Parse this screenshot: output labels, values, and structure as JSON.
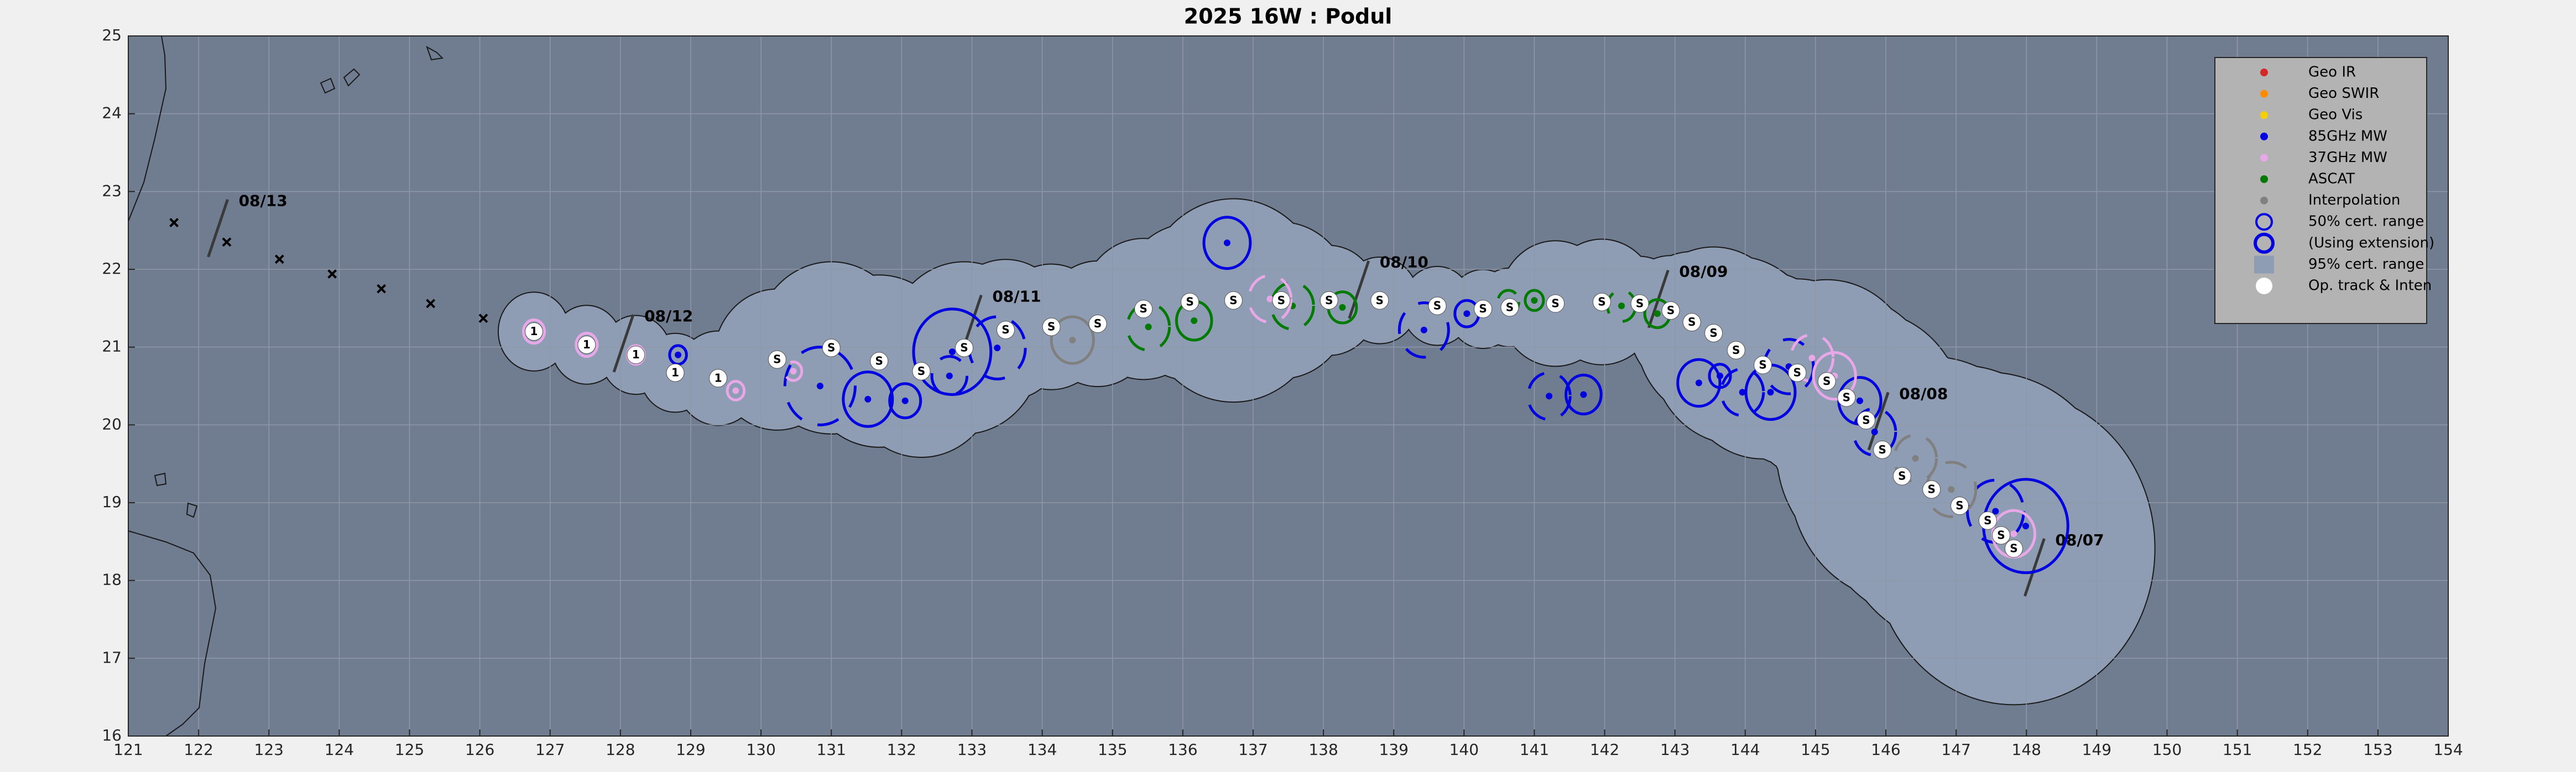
{
  "chart_data": {
    "type": "track",
    "title": "2025  16W :  Podul",
    "xlim": [
      121,
      154
    ],
    "ylim": [
      16,
      25
    ],
    "xticks": [
      121,
      122,
      123,
      124,
      125,
      126,
      127,
      128,
      129,
      130,
      131,
      132,
      133,
      134,
      135,
      136,
      137,
      138,
      139,
      140,
      141,
      142,
      143,
      144,
      145,
      146,
      147,
      148,
      149,
      150,
      151,
      152,
      153,
      154
    ],
    "yticks": [
      16,
      17,
      18,
      19,
      20,
      21,
      22,
      23,
      24,
      25
    ],
    "grid": true,
    "legend": "upper right",
    "legend_entries": [
      {
        "name": "Geo IR",
        "color": "#d62728",
        "marker": "dot"
      },
      {
        "name": "Geo SWIR",
        "color": "#ff8c00",
        "marker": "dot"
      },
      {
        "name": "Geo Vis",
        "color": "#f5d000",
        "marker": "dot"
      },
      {
        "name": "85GHz MW",
        "color": "#0000e0",
        "marker": "dot"
      },
      {
        "name": "37GHz MW",
        "color": "#e8a8e8",
        "marker": "dot"
      },
      {
        "name": "ASCAT",
        "color": "#007a00",
        "marker": "dot"
      },
      {
        "name": "Interpolation",
        "color": "#808080",
        "marker": "dot"
      },
      {
        "name": "50% cert. range",
        "color": "#0000e0",
        "marker": "ring"
      },
      {
        "name": "(Using extension)",
        "color": "#0000e0",
        "marker": "ring-thick"
      },
      {
        "name": "95% cert. range",
        "color": "#8f9db4",
        "marker": "patch"
      },
      {
        "name": "Op. track & Inten",
        "color": "#ffffff",
        "marker": "white-dot"
      }
    ],
    "past_positions": {
      "x": [
        121.65,
        122.4,
        123.15,
        123.9,
        124.6,
        125.3,
        126.05
      ],
      "y": [
        22.6,
        22.35,
        22.13,
        21.94,
        21.75,
        21.56,
        21.37
      ]
    },
    "track": {
      "x": [
        126.77,
        127.52,
        128.22,
        128.78,
        129.39,
        130.23,
        131.0,
        131.68,
        132.28,
        132.89,
        133.48,
        134.13,
        134.79,
        135.44,
        136.1,
        136.72,
        137.4,
        138.08,
        138.8,
        139.62,
        140.27,
        140.65,
        141.3,
        141.96,
        142.5,
        142.94,
        143.24,
        143.55,
        143.87,
        144.25,
        144.74,
        145.16,
        145.44,
        145.72,
        145.95,
        146.23,
        146.65,
        147.05,
        147.45,
        147.64,
        147.82
      ],
      "y": [
        21.2,
        21.03,
        20.9,
        20.67,
        20.6,
        20.84,
        20.99,
        20.82,
        20.69,
        20.99,
        21.22,
        21.26,
        21.3,
        21.49,
        21.58,
        21.6,
        21.6,
        21.6,
        21.6,
        21.53,
        21.49,
        21.51,
        21.56,
        21.58,
        21.56,
        21.47,
        21.32,
        21.18,
        20.96,
        20.77,
        20.67,
        20.56,
        20.35,
        20.06,
        19.68,
        19.34,
        19.17,
        18.96,
        18.77,
        18.58,
        18.41
      ],
      "labels": [
        "1",
        "1",
        "1",
        "1",
        "1",
        "S",
        "S",
        "S",
        "S",
        "S",
        "S",
        "S",
        "S",
        "S",
        "S",
        "S",
        "S",
        "S",
        "S",
        "S",
        "S",
        "S",
        "S",
        "S",
        "S",
        "S",
        "S",
        "S",
        "S",
        "S",
        "S",
        "S",
        "S",
        "S",
        "S",
        "S",
        "S",
        "S",
        "S",
        "S",
        "S"
      ],
      "cert95": [
        0.5,
        0.5,
        0.5,
        0.5,
        0.6,
        0.9,
        1.1,
        1.1,
        1.1,
        1.1,
        0.9,
        0.8,
        0.8,
        0.9,
        1.0,
        1.3,
        1.0,
        0.7,
        0.55,
        0.5,
        0.5,
        0.5,
        0.8,
        0.8,
        0.6,
        0.7,
        0.9,
        1.1,
        1.2,
        1.2,
        1.2,
        1.3,
        1.3,
        1.4,
        1.5,
        1.6,
        1.7,
        1.8,
        1.9,
        1.9,
        2.0
      ]
    },
    "fixes": [
      {
        "x": 136.63,
        "y": 22.34,
        "r": 0.33,
        "color": "#0000e0",
        "dashed": false
      },
      {
        "x": 128.82,
        "y": 20.9,
        "r": 0.12,
        "color": "#0000e0",
        "dashed": false
      },
      {
        "x": 130.84,
        "y": 20.5,
        "r": 0.5,
        "color": "#0000e0",
        "dashed": true
      },
      {
        "x": 131.52,
        "y": 20.33,
        "r": 0.35,
        "color": "#0000e0",
        "dashed": false
      },
      {
        "x": 132.05,
        "y": 20.31,
        "r": 0.22,
        "color": "#0000e0",
        "dashed": false
      },
      {
        "x": 132.68,
        "y": 20.63,
        "r": 0.25,
        "color": "#0000e0",
        "dashed": true
      },
      {
        "x": 132.72,
        "y": 20.94,
        "r": 0.55,
        "color": "#0000e0",
        "dashed": false
      },
      {
        "x": 133.36,
        "y": 20.99,
        "r": 0.4,
        "color": "#0000e0",
        "dashed": true
      },
      {
        "x": 139.43,
        "y": 21.22,
        "r": 0.35,
        "color": "#0000e0",
        "dashed": true
      },
      {
        "x": 140.04,
        "y": 21.43,
        "r": 0.17,
        "color": "#0000e0",
        "dashed": false
      },
      {
        "x": 141.21,
        "y": 20.37,
        "r": 0.3,
        "color": "#0000e0",
        "dashed": true
      },
      {
        "x": 141.7,
        "y": 20.39,
        "r": 0.25,
        "color": "#0000e0",
        "dashed": false
      },
      {
        "x": 143.34,
        "y": 20.54,
        "r": 0.3,
        "color": "#0000e0",
        "dashed": false
      },
      {
        "x": 143.64,
        "y": 20.63,
        "r": 0.15,
        "color": "#0000e0",
        "dashed": false
      },
      {
        "x": 143.96,
        "y": 20.42,
        "r": 0.3,
        "color": "#0000e0",
        "dashed": true
      },
      {
        "x": 144.36,
        "y": 20.42,
        "r": 0.35,
        "color": "#0000e0",
        "dashed": false
      },
      {
        "x": 144.62,
        "y": 20.75,
        "r": 0.35,
        "color": "#0000e0",
        "dashed": true
      },
      {
        "x": 145.63,
        "y": 20.31,
        "r": 0.3,
        "color": "#0000e0",
        "dashed": false
      },
      {
        "x": 145.84,
        "y": 19.91,
        "r": 0.3,
        "color": "#0000e0",
        "dashed": true
      },
      {
        "x": 147.99,
        "y": 18.7,
        "r": 0.6,
        "color": "#0000e0",
        "dashed": false
      },
      {
        "x": 147.56,
        "y": 18.89,
        "r": 0.4,
        "color": "#0000e0",
        "dashed": true
      },
      {
        "x": 135.51,
        "y": 21.26,
        "r": 0.3,
        "color": "#007a00",
        "dashed": true
      },
      {
        "x": 136.16,
        "y": 21.34,
        "r": 0.25,
        "color": "#007a00",
        "dashed": false
      },
      {
        "x": 137.56,
        "y": 21.53,
        "r": 0.3,
        "color": "#007a00",
        "dashed": true
      },
      {
        "x": 138.27,
        "y": 21.51,
        "r": 0.2,
        "color": "#007a00",
        "dashed": false
      },
      {
        "x": 140.63,
        "y": 21.58,
        "r": 0.15,
        "color": "#007a00",
        "dashed": true
      },
      {
        "x": 141.0,
        "y": 21.6,
        "r": 0.13,
        "color": "#007a00",
        "dashed": false
      },
      {
        "x": 142.24,
        "y": 21.53,
        "r": 0.2,
        "color": "#007a00",
        "dashed": true
      },
      {
        "x": 142.75,
        "y": 21.43,
        "r": 0.18,
        "color": "#007a00",
        "dashed": false
      },
      {
        "x": 126.77,
        "y": 21.2,
        "r": 0.15,
        "color": "#e8a8e8",
        "dashed": false
      },
      {
        "x": 127.52,
        "y": 21.03,
        "r": 0.15,
        "color": "#e8a8e8",
        "dashed": false
      },
      {
        "x": 128.22,
        "y": 20.9,
        "r": 0.12,
        "color": "#e8a8e8",
        "dashed": false
      },
      {
        "x": 129.64,
        "y": 20.44,
        "r": 0.12,
        "color": "#e8a8e8",
        "dashed": false
      },
      {
        "x": 130.46,
        "y": 20.69,
        "r": 0.12,
        "color": "#e8a8e8",
        "dashed": true
      },
      {
        "x": 137.24,
        "y": 21.62,
        "r": 0.3,
        "color": "#e8a8e8",
        "dashed": true
      },
      {
        "x": 144.95,
        "y": 20.86,
        "r": 0.3,
        "color": "#e8a8e8",
        "dashed": true
      },
      {
        "x": 145.27,
        "y": 20.63,
        "r": 0.3,
        "color": "#e8a8e8",
        "dashed": false
      },
      {
        "x": 147.82,
        "y": 18.6,
        "r": 0.3,
        "color": "#e8a8e8",
        "dashed": false
      },
      {
        "x": 134.43,
        "y": 21.09,
        "r": 0.3,
        "color": "#808080",
        "dashed": false
      },
      {
        "x": 146.42,
        "y": 19.57,
        "r": 0.3,
        "color": "#808080",
        "dashed": true
      },
      {
        "x": 146.93,
        "y": 19.17,
        "r": 0.35,
        "color": "#808080",
        "dashed": true
      }
    ],
    "dates": [
      {
        "label": "08/13",
        "x": 122.57,
        "y": 22.87
      },
      {
        "label": "08/12",
        "x": 128.34,
        "y": 21.39
      },
      {
        "label": "08/11",
        "x": 133.29,
        "y": 21.64
      },
      {
        "label": "08/10",
        "x": 138.8,
        "y": 22.08
      },
      {
        "label": "08/09",
        "x": 143.06,
        "y": 21.96
      },
      {
        "label": "08/08",
        "x": 146.19,
        "y": 20.39
      },
      {
        "label": "08/07",
        "x": 148.41,
        "y": 18.51
      }
    ]
  }
}
